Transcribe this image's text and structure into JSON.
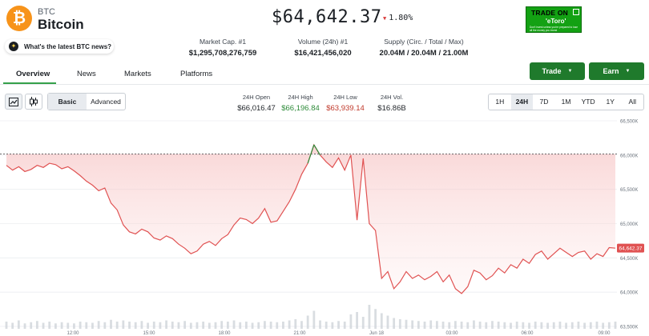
{
  "coin": {
    "symbol": "BTC",
    "name": "Bitcoin",
    "logo_glyph": "₿",
    "logo_color": "#f7931a"
  },
  "news_prompt": "What's the latest BTC news?",
  "price": "$64,642.37",
  "change": {
    "direction": "down",
    "text": "1.80%",
    "color": "#d93b3b"
  },
  "stats": [
    {
      "label": "Market Cap. #1",
      "value": "$1,295,708,276,759"
    },
    {
      "label": "Volume (24h) #1",
      "value": "$16,421,456,020"
    },
    {
      "label": "Supply (Circ. / Total / Max)",
      "value": "20.04M / 20.04M / 21.00M"
    }
  ],
  "ad": {
    "line1": "TRADE ON",
    "line2": "'eToro'",
    "line3": "Don't invest unless you're prepared to lose all the money you invest",
    "color": "#13a113"
  },
  "tabs": [
    "Overview",
    "News",
    "Markets",
    "Platforms"
  ],
  "active_tab": "Overview",
  "buttons": {
    "trade": "Trade",
    "earn": "Earn"
  },
  "chart_modes": [
    "Basic",
    "Advanced"
  ],
  "active_mode": "Basic",
  "ohlc": [
    {
      "label": "24H Open",
      "value": "$66,016.47",
      "color": "#1b1f24"
    },
    {
      "label": "24H High",
      "value": "$66,196.84",
      "color": "#2e8b3a"
    },
    {
      "label": "24H Low",
      "value": "$63,939.14",
      "color": "#c0392b"
    },
    {
      "label": "24H Vol.",
      "value": "$16.86B",
      "color": "#1b1f24"
    }
  ],
  "ranges": [
    "1H",
    "24H",
    "7D",
    "1M",
    "YTD",
    "1Y",
    "All"
  ],
  "active_range": "24H",
  "chart_data": {
    "type": "area",
    "x_ticks": [
      "12:00",
      "15:00",
      "18:00",
      "21:00",
      "Jun 18",
      "03:00",
      "06:00",
      "09:00"
    ],
    "y_ticks": [
      "66,500K",
      "66,000K",
      "65,500K",
      "65,000K",
      "64,500K",
      "64,000K",
      "63,500K"
    ],
    "ylim": [
      63500,
      66500
    ],
    "reference_price": 66016.47,
    "current_price_label": "64,642.37",
    "line_color": "#e05252",
    "up_color": "#2e8b3a",
    "series": [
      {
        "values": [
          65850,
          65780,
          65830,
          65760,
          65790,
          65850,
          65820,
          65880,
          65860,
          65800,
          65830,
          65770,
          65700,
          65620,
          65560,
          65480,
          65520,
          65300,
          65200,
          64980,
          64880,
          64850,
          64920,
          64880,
          64790,
          64760,
          64820,
          64780,
          64700,
          64640,
          64560,
          64600,
          64700,
          64740,
          64680,
          64780,
          64840,
          64980,
          65080,
          65060,
          65000,
          65080,
          65220,
          65020,
          65040,
          65180,
          65320,
          65500,
          65720,
          65880,
          66150,
          66000,
          65900,
          65820,
          65960,
          65780,
          66000,
          65050,
          65950,
          65000,
          64900,
          64200,
          64300,
          64050,
          64150,
          64300,
          64200,
          64250,
          64180,
          64230,
          64300,
          64150,
          64250,
          64050,
          63980,
          64080,
          64320,
          64280,
          64180,
          64240,
          64350,
          64280,
          64400,
          64350,
          64480,
          64420,
          64550,
          64600,
          64480,
          64560,
          64640,
          64580,
          64520,
          64580,
          64600,
          64480,
          64560,
          64520,
          64650,
          64642
        ],
        "volume": [
          12,
          10,
          14,
          9,
          11,
          13,
          10,
          12,
          9,
          11,
          10,
          9,
          12,
          11,
          10,
          13,
          11,
          15,
          12,
          14,
          12,
          11,
          13,
          10,
          12,
          11,
          14,
          12,
          11,
          13,
          10,
          11,
          12,
          10,
          11,
          13,
          12,
          14,
          11,
          12,
          10,
          11,
          13,
          12,
          11,
          12,
          14,
          16,
          13,
          22,
          30,
          14,
          12,
          11,
          13,
          12,
          24,
          28,
          20,
          40,
          33,
          26,
          22,
          18,
          16,
          15,
          14,
          13,
          12,
          14,
          13,
          12,
          11,
          13,
          12,
          11,
          14,
          12,
          11,
          13,
          12,
          11,
          10,
          12,
          11,
          10,
          12,
          11,
          10,
          11,
          12,
          10,
          11,
          12,
          10,
          11,
          12,
          10,
          11,
          12
        ]
      }
    ]
  }
}
